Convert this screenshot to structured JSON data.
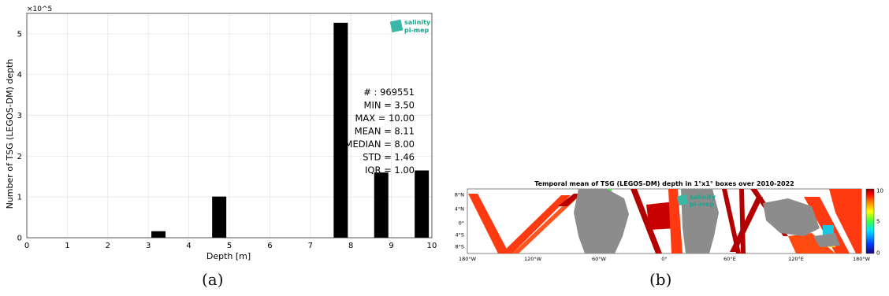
{
  "chart_data": [
    {
      "type": "bar",
      "x": [
        3.25,
        4.75,
        7.75,
        8.75,
        9.75
      ],
      "values": [
        16000,
        101000,
        527000,
        160000,
        165000
      ],
      "xlabel": "Depth [m]",
      "ylabel": "Number of TSG (LEGOS-DM) depth",
      "xlim": [
        0,
        10
      ],
      "ylim": [
        0,
        550000
      ],
      "y_exponent": "×10^5",
      "x_ticks": [
        0,
        1,
        2,
        3,
        4,
        5,
        6,
        7,
        8,
        9,
        10
      ],
      "y_ticks": [
        0,
        1,
        2,
        3,
        4,
        5
      ],
      "grid": true,
      "color": "#000000",
      "stats": [
        "# : 969551",
        "MIN = 3.50",
        "MAX =  10.00",
        "MEAN = 8.11",
        "MEDIAN = 8.00",
        "STD = 1.46",
        "IQR = 1.00"
      ],
      "logo": {
        "line1": "salinity",
        "line2": "pi-mep",
        "color": "#1aa58f"
      }
    },
    {
      "type": "heatmap",
      "title": "Temporal mean of TSG (LEGOS-DM) depth in 1°x1° boxes over 2010-2022",
      "x_ticks": [
        "180°W",
        "120°W",
        "60°W",
        "0°",
        "60°E",
        "120°E",
        "180°W"
      ],
      "y_ticks": [
        "8°N",
        "4°N",
        "0°",
        "4°S",
        "8°S"
      ],
      "colorbar": {
        "min": 0,
        "max": 10,
        "ticks": [
          "10",
          "5",
          "0"
        ]
      },
      "land_color": "#8c8c8c",
      "dominant_value_color": "#ff3300",
      "logo": {
        "line1": "salinity",
        "line2": "pi-mep"
      }
    }
  ],
  "captions": {
    "a": "(a)",
    "b": "(b)"
  }
}
